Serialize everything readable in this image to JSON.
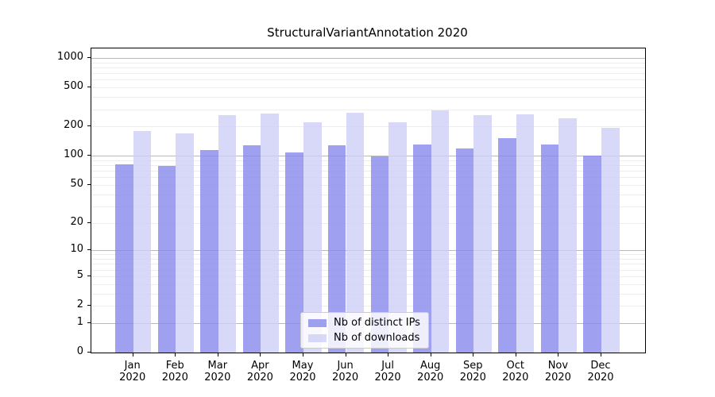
{
  "figure": {
    "title": "StructuralVariantAnnotation 2020"
  },
  "chart_data": {
    "type": "bar",
    "title": "StructuralVariantAnnotation 2020",
    "xlabel": "",
    "ylabel": "",
    "year": "2020",
    "categories": [
      "Jan",
      "Feb",
      "Mar",
      "Apr",
      "May",
      "Jun",
      "Jul",
      "Aug",
      "Sep",
      "Oct",
      "Nov",
      "Dec"
    ],
    "series": [
      {
        "name": "Nb of distinct IPs",
        "color": "rgba(136,136,236,0.8)",
        "values": [
          81,
          79,
          114,
          129,
          108,
          127,
          98,
          131,
          118,
          153,
          131,
          100
        ]
      },
      {
        "name": "Nb of downloads",
        "color": "rgba(206,206,246,0.8)",
        "values": [
          178,
          171,
          262,
          272,
          222,
          276,
          219,
          294,
          261,
          267,
          241,
          192
        ]
      }
    ],
    "y_axis": {
      "scale": "log10(value+1)",
      "ylim": [
        0,
        1250
      ],
      "ticks": [
        1000,
        500,
        200,
        100,
        50,
        20,
        10,
        5,
        2,
        1,
        0
      ],
      "major_gridlines": [
        1,
        10,
        100,
        1000
      ],
      "minor_gridlines": [
        2,
        3,
        4,
        5,
        6,
        7,
        8,
        9,
        20,
        30,
        40,
        50,
        60,
        70,
        80,
        90,
        200,
        300,
        400,
        500,
        600,
        700,
        800,
        900
      ]
    },
    "grid": true,
    "legend_position": "lower center"
  }
}
